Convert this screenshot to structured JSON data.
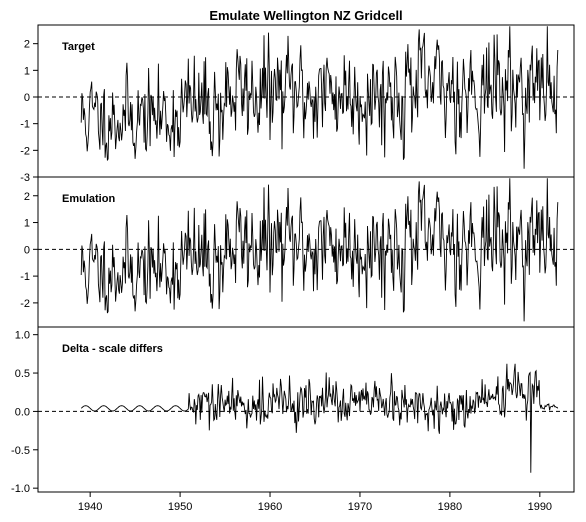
{
  "chart_data": {
    "type": "line",
    "title": "Emulate Wellington NZ Gridcell",
    "x_ticks": [
      1940,
      1950,
      1960,
      1970,
      1980,
      1990
    ],
    "xlim": [
      1934.2,
      1993.8
    ],
    "panels": [
      {
        "label": "Target",
        "ylim": [
          -3,
          2.7
        ],
        "y_ticks": [
          -3,
          -2,
          -1,
          0,
          1,
          2
        ],
        "y_tick_labels": [
          "-3",
          "-2",
          "-1",
          "0",
          "1",
          "2"
        ],
        "zero_line": true,
        "series": [
          {
            "x_start": 1939.0,
            "x_end": 1992.0,
            "points_per_year": 12,
            "seed": 11,
            "kind": "anomaly"
          }
        ]
      },
      {
        "label": "Emulation",
        "ylim": [
          -2.9,
          2.7
        ],
        "y_ticks": [
          -2,
          -1,
          0,
          1,
          2
        ],
        "y_tick_labels": [
          "-2",
          "-1",
          "0",
          "1",
          "2"
        ],
        "zero_line": true,
        "series": [
          {
            "x_start": 1939.0,
            "x_end": 1992.0,
            "points_per_year": 12,
            "seed": 11,
            "kind": "anomaly"
          }
        ]
      },
      {
        "label": "Delta - scale differs",
        "ylim": [
          -1.05,
          1.1
        ],
        "y_ticks": [
          -1.0,
          -0.5,
          0.0,
          0.5,
          1.0
        ],
        "y_tick_labels": [
          "-1.0",
          "-0.5",
          "0.0",
          "0.5",
          "1.0"
        ],
        "zero_line": true,
        "series": [
          {
            "x_start": 1939.0,
            "x_end": 1992.0,
            "points_per_year": 12,
            "seed": 29,
            "kind": "delta",
            "spike": {
              "x": 1989.0,
              "y": -0.8
            }
          }
        ]
      }
    ],
    "colors": {
      "line": "#000000",
      "frame": "#000000",
      "background": "#ffffff"
    },
    "grid": false
  }
}
